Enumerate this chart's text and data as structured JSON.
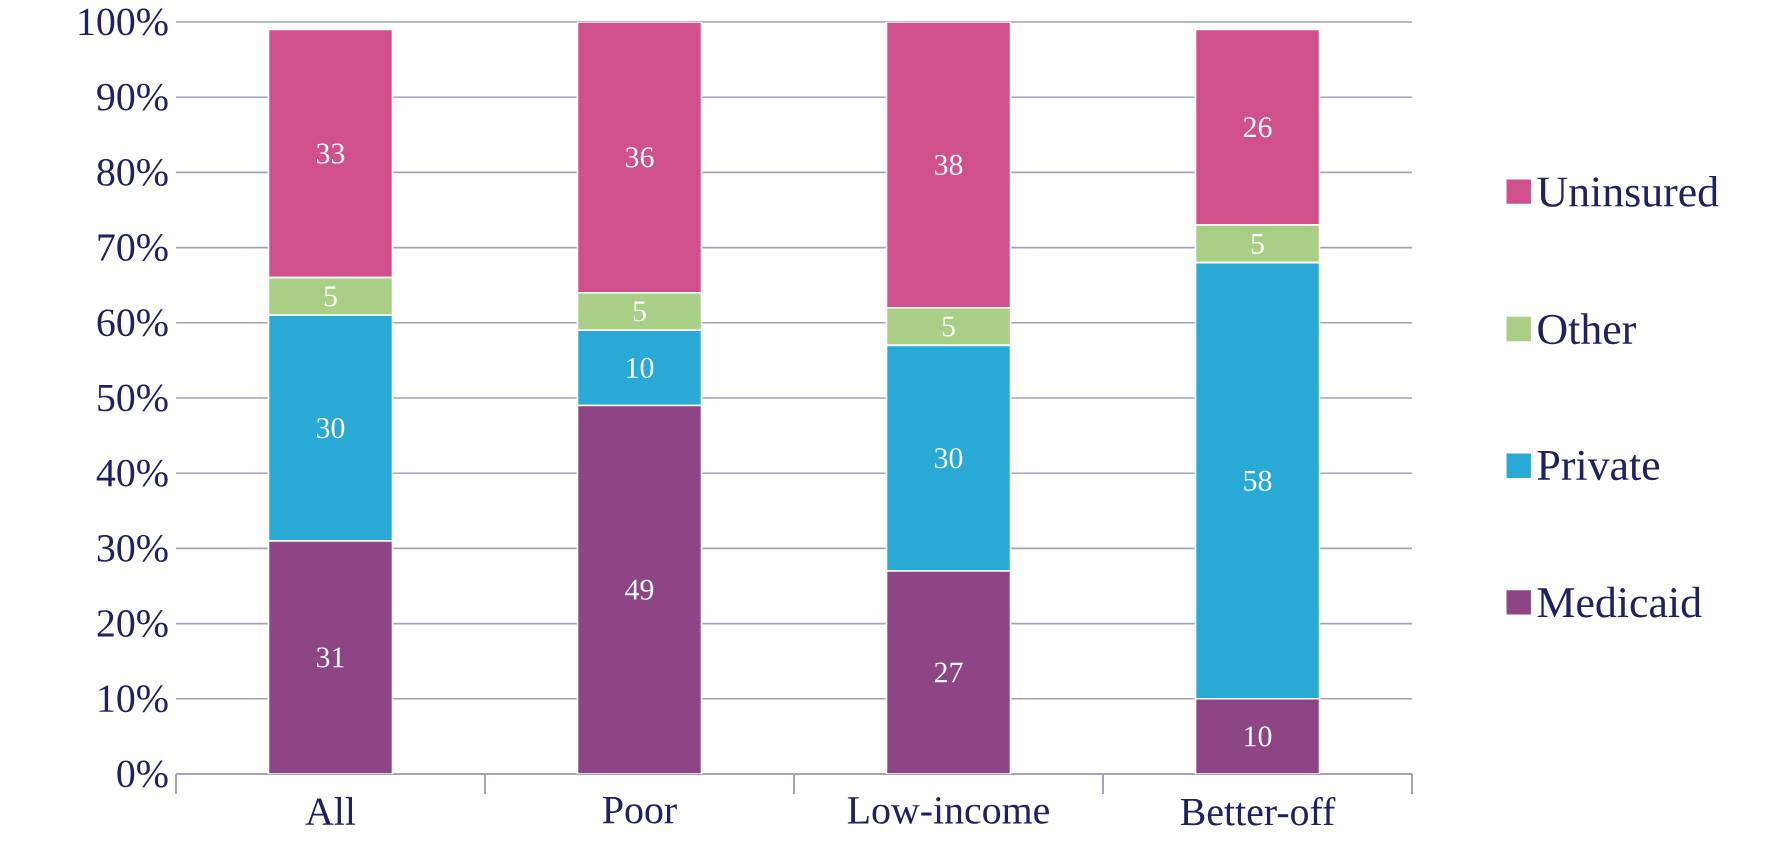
{
  "chart_data": {
    "type": "bar",
    "stacked": true,
    "categories": [
      "All",
      "Poor",
      "Low-income",
      "Better-off"
    ],
    "series": [
      {
        "name": "Medicaid",
        "color": "#8e4585",
        "values": [
          31,
          49,
          27,
          10
        ]
      },
      {
        "name": "Private",
        "color": "#29a9d5",
        "values": [
          30,
          10,
          30,
          58
        ]
      },
      {
        "name": "Other",
        "color": "#a9cf86",
        "values": [
          5,
          5,
          5,
          5
        ]
      },
      {
        "name": "Uninsured",
        "color": "#d0508b",
        "values": [
          33,
          36,
          38,
          26
        ]
      }
    ],
    "ylim": [
      0,
      100
    ],
    "yticks": [
      {
        "value": 0,
        "label": "0%"
      },
      {
        "value": 10,
        "label": "10%"
      },
      {
        "value": 20,
        "label": "20%"
      },
      {
        "value": 30,
        "label": "30%"
      },
      {
        "value": 40,
        "label": "40%"
      },
      {
        "value": 50,
        "label": "50%"
      },
      {
        "value": 60,
        "label": "60%"
      },
      {
        "value": 70,
        "label": "70%"
      },
      {
        "value": 80,
        "label": "80%"
      },
      {
        "value": 90,
        "label": "90%"
      },
      {
        "value": 100,
        "label": "100%"
      }
    ],
    "grid": "y",
    "legend": "right",
    "data_labels": true
  }
}
